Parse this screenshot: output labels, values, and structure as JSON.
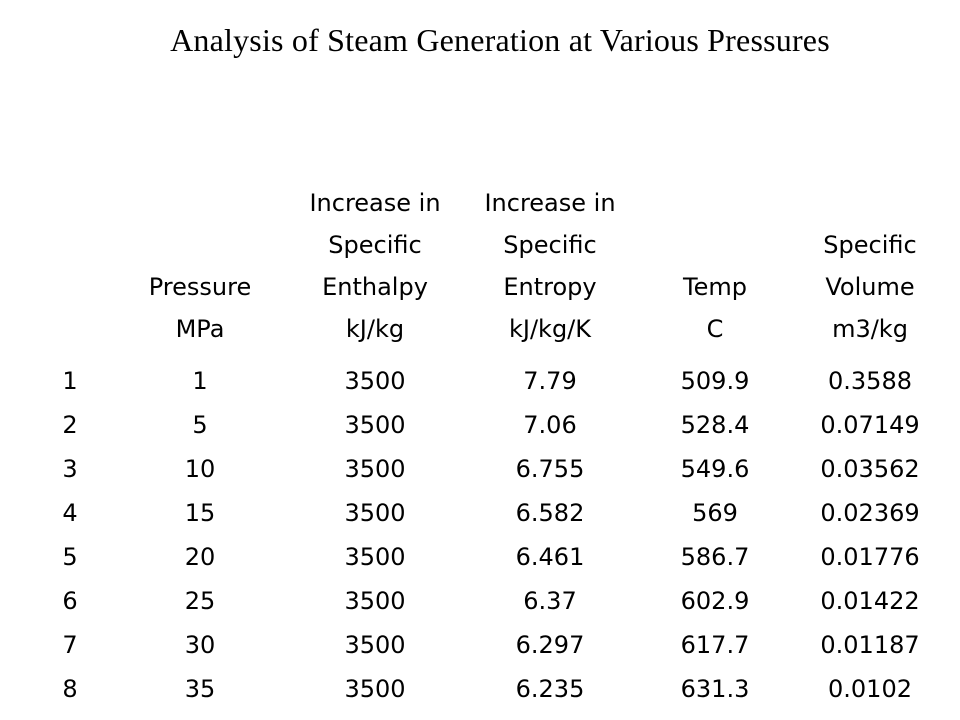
{
  "title": "Analysis of Steam Generation at Various Pressures",
  "headers": [
    {
      "lines": [
        ""
      ],
      "unit": ""
    },
    {
      "lines": [
        "Pressure"
      ],
      "unit": "MPa"
    },
    {
      "lines": [
        "Increase in",
        "Specific",
        "Enthalpy"
      ],
      "unit": "kJ/kg"
    },
    {
      "lines": [
        "Increase in",
        "Specific",
        "Entropy"
      ],
      "unit": "kJ/kg/K"
    },
    {
      "lines": [
        "Temp"
      ],
      "unit": "C"
    },
    {
      "lines": [
        "Specific",
        "Volume"
      ],
      "unit": "m3/kg"
    }
  ],
  "rows": [
    [
      "1",
      "1",
      "3500",
      "7.79",
      "509.9",
      "0.3588"
    ],
    [
      "2",
      "5",
      "3500",
      "7.06",
      "528.4",
      "0.07149"
    ],
    [
      "3",
      "10",
      "3500",
      "6.755",
      "549.6",
      "0.03562"
    ],
    [
      "4",
      "15",
      "3500",
      "6.582",
      "569",
      "0.02369"
    ],
    [
      "5",
      "20",
      "3500",
      "6.461",
      "586.7",
      "0.01776"
    ],
    [
      "6",
      "25",
      "3500",
      "6.37",
      "602.9",
      "0.01422"
    ],
    [
      "7",
      "30",
      "3500",
      "6.297",
      "617.7",
      "0.01187"
    ],
    [
      "8",
      "35",
      "3500",
      "6.235",
      "631.3",
      "0.0102"
    ]
  ]
}
